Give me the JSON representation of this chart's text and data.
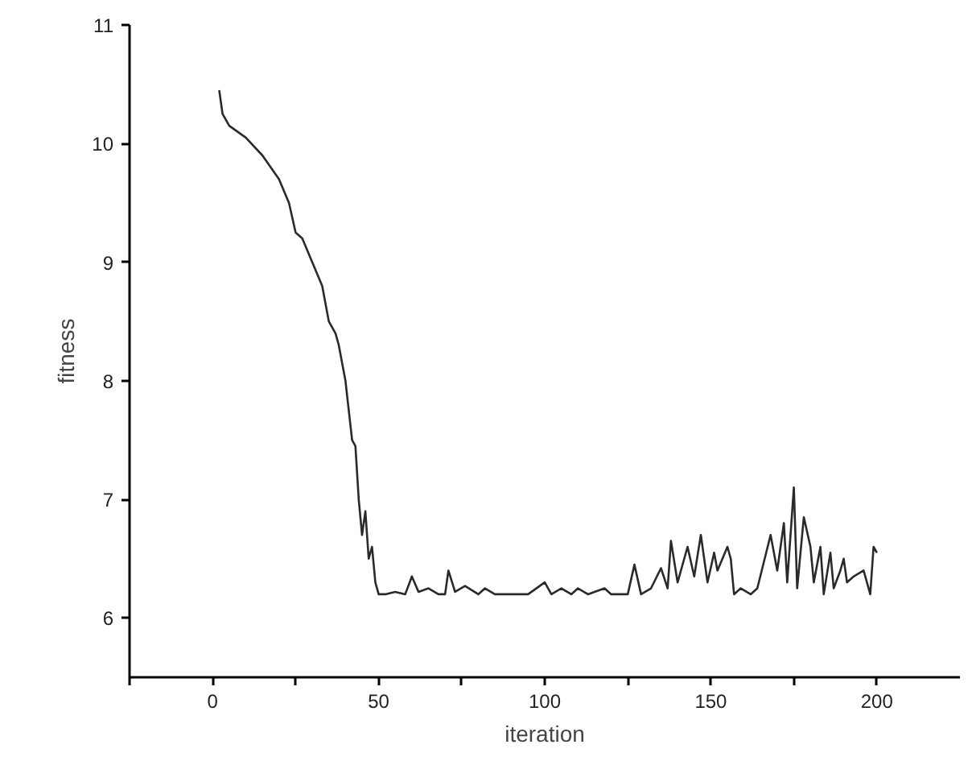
{
  "chart_data": {
    "type": "line",
    "xlabel": "iteration",
    "ylabel": "fitness",
    "color": "#2a2a2a",
    "grid": false,
    "marker": "none",
    "line_style": "solid",
    "xlim": [
      -25,
      225
    ],
    "ylim": [
      5.5,
      11
    ],
    "xticks": [
      {
        "value": -25,
        "label": null
      },
      0,
      {
        "value": 25,
        "label": null
      },
      50,
      {
        "value": 75,
        "label": null
      },
      100,
      {
        "value": 125,
        "label": null
      },
      150,
      {
        "value": 175,
        "label": null
      },
      200
    ],
    "yticks": [
      6,
      7,
      8,
      9,
      10,
      11
    ],
    "x": [
      2,
      3,
      5,
      10,
      15,
      20,
      23,
      25,
      27,
      30,
      33,
      35,
      37,
      38,
      40,
      42,
      43,
      44,
      45,
      46,
      47,
      48,
      49,
      50,
      52,
      55,
      58,
      60,
      62,
      65,
      68,
      70,
      71,
      73,
      76,
      80,
      82,
      85,
      90,
      95,
      100,
      102,
      105,
      108,
      110,
      113,
      118,
      120,
      125,
      127,
      129,
      132,
      135,
      137,
      138,
      140,
      143,
      145,
      147,
      149,
      151,
      152,
      155,
      156,
      157,
      159,
      162,
      164,
      168,
      170,
      172,
      173,
      175,
      176,
      178,
      180,
      181,
      183,
      184,
      186,
      187,
      189,
      190,
      191,
      193,
      196,
      198,
      199,
      200
    ],
    "values": [
      10.45,
      10.25,
      10.15,
      10.05,
      9.9,
      9.7,
      9.5,
      9.25,
      9.2,
      9.0,
      8.8,
      8.5,
      8.4,
      8.3,
      8.0,
      7.5,
      7.45,
      7.0,
      6.7,
      6.9,
      6.5,
      6.6,
      6.3,
      6.2,
      6.2,
      6.22,
      6.2,
      6.35,
      6.22,
      6.25,
      6.2,
      6.2,
      6.4,
      6.22,
      6.27,
      6.2,
      6.25,
      6.2,
      6.2,
      6.2,
      6.3,
      6.2,
      6.25,
      6.2,
      6.25,
      6.2,
      6.25,
      6.2,
      6.2,
      6.45,
      6.2,
      6.25,
      6.42,
      6.25,
      6.65,
      6.3,
      6.6,
      6.35,
      6.7,
      6.3,
      6.55,
      6.4,
      6.6,
      6.5,
      6.2,
      6.25,
      6.2,
      6.25,
      6.7,
      6.4,
      6.8,
      6.3,
      7.1,
      6.25,
      6.85,
      6.6,
      6.3,
      6.6,
      6.2,
      6.55,
      6.25,
      6.4,
      6.5,
      6.3,
      6.35,
      6.4,
      6.2,
      6.6,
      6.55
    ]
  }
}
